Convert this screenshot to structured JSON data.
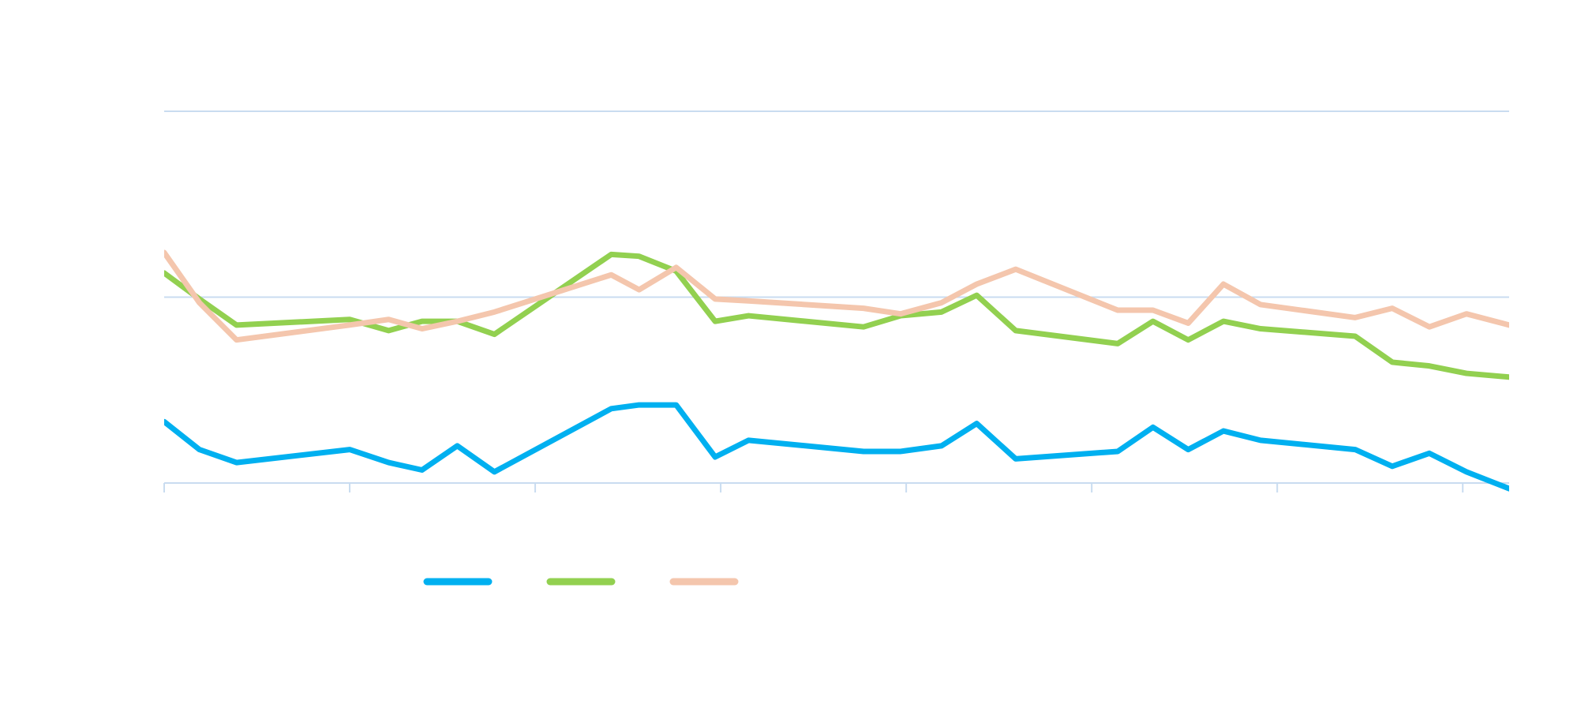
{
  "chart_data": {
    "type": "line",
    "title": "",
    "xlabel": "",
    "ylabel": "",
    "xlim": [
      0,
      7.25
    ],
    "ylim": [
      0,
      200
    ],
    "x_ticks": [
      0,
      1,
      2,
      3,
      4,
      5,
      6,
      7
    ],
    "y_gridlines": [
      0,
      100,
      200
    ],
    "grid": true,
    "legend": "bottom",
    "x": [
      0,
      0.19,
      0.39,
      1.0,
      1.21,
      1.39,
      1.58,
      1.78,
      2.41,
      2.56,
      2.76,
      2.97,
      3.15,
      3.77,
      3.97,
      4.19,
      4.38,
      4.59,
      5.14,
      5.33,
      5.52,
      5.71,
      5.91,
      6.42,
      6.62,
      6.82,
      7.02,
      7.25
    ],
    "series": [
      {
        "color": "#00b0f0",
        "values": [
          33,
          18,
          11,
          18,
          11,
          7,
          20,
          6,
          40,
          42,
          42,
          14,
          23,
          17,
          17,
          20,
          32,
          13,
          17,
          30,
          18,
          28,
          23,
          18,
          9,
          16,
          6,
          -3
        ]
      },
      {
        "color": "#92d050",
        "values": [
          113,
          99,
          85,
          88,
          82,
          87,
          87,
          80,
          123,
          122,
          114,
          87,
          90,
          84,
          90,
          92,
          101,
          82,
          75,
          87,
          77,
          87,
          83,
          79,
          65,
          63,
          59,
          57
        ]
      },
      {
        "color": "#f4c6ad",
        "values": [
          124,
          97,
          77,
          85,
          88,
          83,
          87,
          92,
          112,
          104,
          116,
          99,
          98,
          94,
          91,
          97,
          107,
          115,
          93,
          93,
          86,
          107,
          96,
          89,
          94,
          84,
          91,
          85
        ]
      }
    ],
    "colors": {
      "grid": "#c9dcf0",
      "axis": "#c9dcf0"
    }
  }
}
